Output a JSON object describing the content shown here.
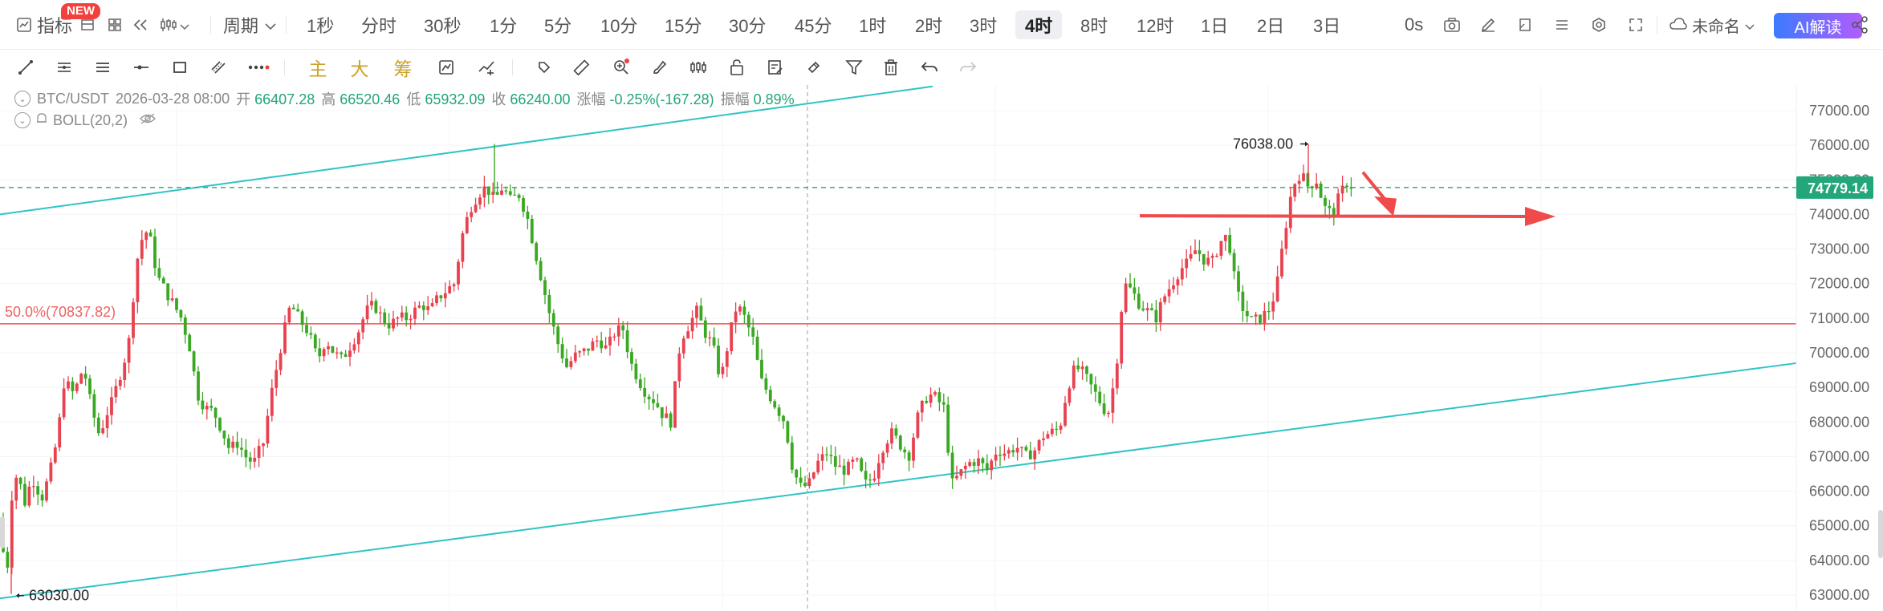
{
  "toolbar": {
    "indicator_label": "指标",
    "new_badge": "NEW",
    "period_label": "周期",
    "periods": [
      "1秒",
      "分时",
      "30秒",
      "1分",
      "5分",
      "10分",
      "15分",
      "30分",
      "45分",
      "1时",
      "2时",
      "3时",
      "4时",
      "8时",
      "12时",
      "1日",
      "2日",
      "3日"
    ],
    "active_period": "4时",
    "countdown": "0s",
    "layout_name": "未命名",
    "ai_label": "AI解读"
  },
  "drawbar": {
    "text_tools": [
      "主",
      "大",
      "筹"
    ]
  },
  "info": {
    "symbol": "BTC/USDT",
    "datetime": "2026-03-28 08:00",
    "open_label": "开",
    "open": "66407.28",
    "high_label": "高",
    "high": "66520.46",
    "low_label": "低",
    "low": "65932.09",
    "close_label": "收",
    "close": "66240.00",
    "change_label": "涨幅",
    "change": "-0.25%(-167.28)",
    "amp_label": "振幅",
    "amp": "0.89%",
    "indicator": "BOLL(20,2)"
  },
  "chart_data": {
    "type": "candlestick",
    "ylim": [
      62700,
      77700
    ],
    "y_ticks": [
      "77000.00",
      "76000.00",
      "75000.00",
      "74000.00",
      "73000.00",
      "72000.00",
      "71000.00",
      "70000.00",
      "69000.00",
      "68000.00",
      "67000.00",
      "66000.00",
      "65000.00",
      "64000.00",
      "63000.00"
    ],
    "current_price": "74779.14",
    "current_price_value": 74779.14,
    "fib_label": "50.0%(70837.82)",
    "fib_value": 70837.82,
    "high_marker": "76038.00",
    "low_marker": "63030.00",
    "colors": {
      "up": "#e8414f",
      "down": "#3aa823",
      "channel": "#2ec4c7",
      "price_line": "#22a67a",
      "fib": "#f06262",
      "arrow": "#f04a4a"
    }
  }
}
